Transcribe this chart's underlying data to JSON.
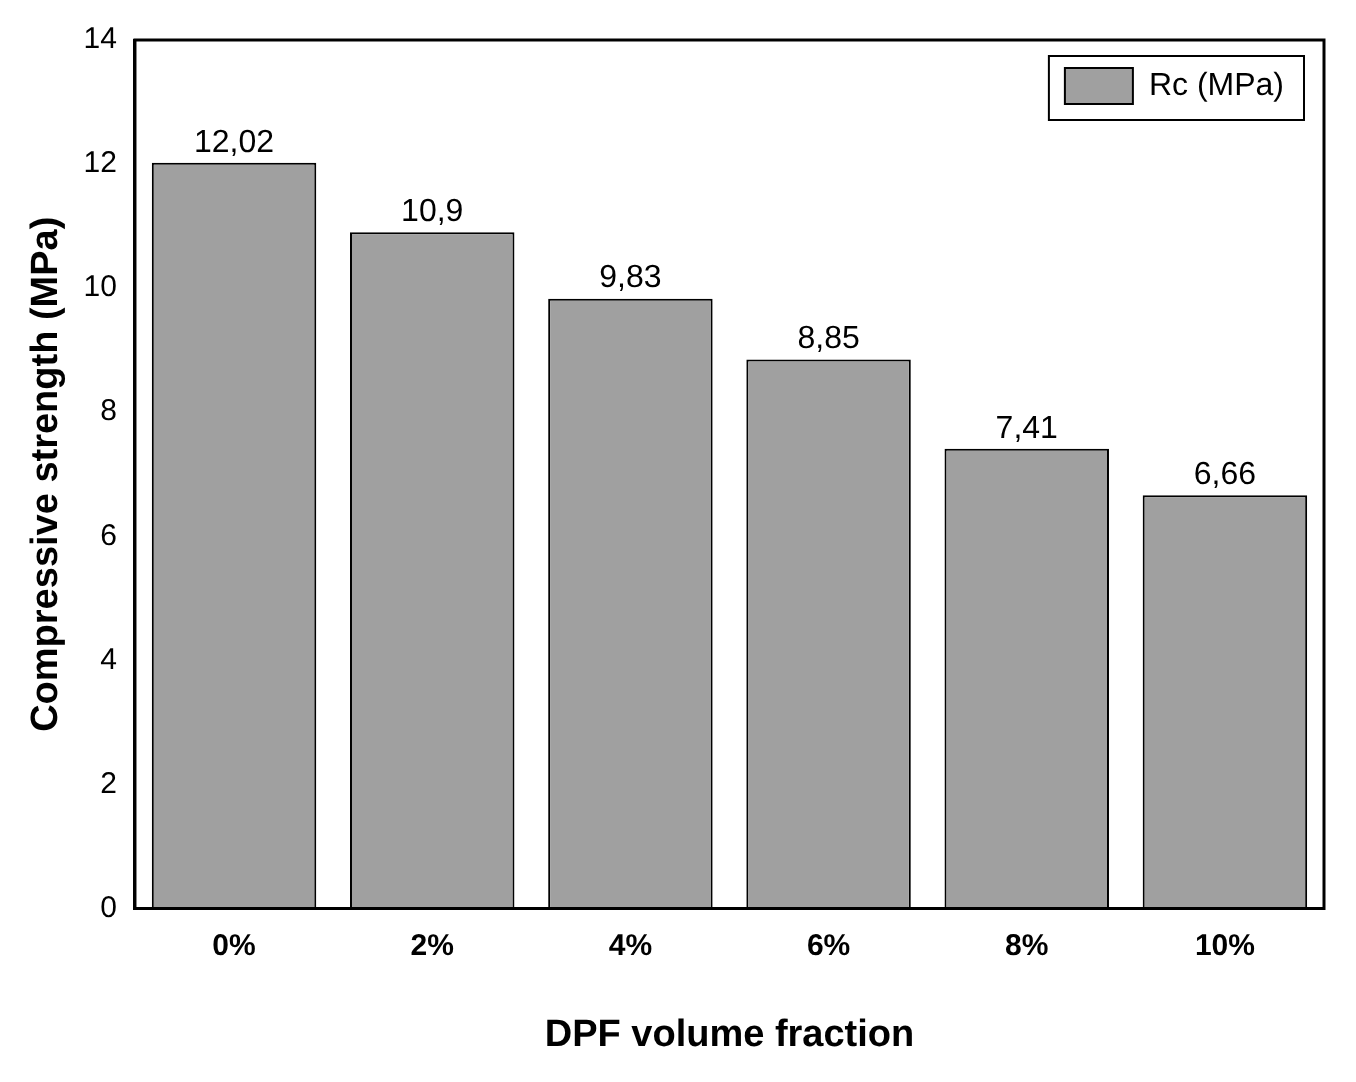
{
  "chart_data": {
    "type": "bar",
    "xlabel": "DPF volume fraction",
    "ylabel": "Compressive strength (MPa)",
    "categories": [
      "0%",
      "2%",
      "4%",
      "6%",
      "8%",
      "10%"
    ],
    "series": [
      {
        "name": "Rc (MPa)",
        "color": "#a0a0a0",
        "values": [
          12.02,
          10.9,
          9.83,
          8.85,
          7.41,
          6.66
        ],
        "value_labels": [
          "12,02",
          "10,9",
          "9,83",
          "8,85",
          "7,41",
          "6,66"
        ]
      }
    ],
    "ylim": [
      0,
      14
    ],
    "yticks": [
      0,
      2,
      4,
      6,
      8,
      10,
      12,
      14
    ],
    "grid": false,
    "legend": "top right"
  }
}
